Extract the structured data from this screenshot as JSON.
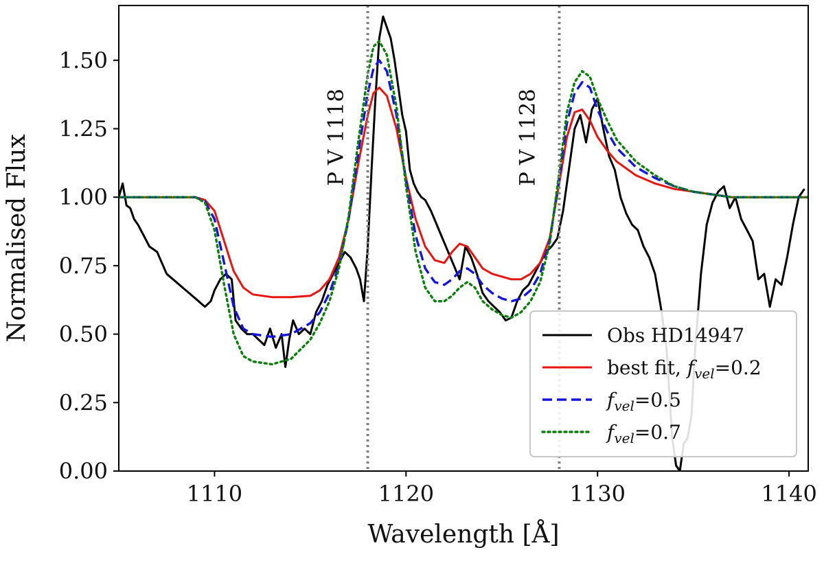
{
  "chart_data": {
    "type": "line",
    "title": "",
    "xlabel": "Wavelength [Å]",
    "ylabel": "Normalised Flux",
    "xlim": [
      1105,
      1141
    ],
    "ylim": [
      0.0,
      1.7
    ],
    "xticks": [
      1110,
      1120,
      1130,
      1140
    ],
    "yticks": [
      0.0,
      0.25,
      0.5,
      0.75,
      1.0,
      1.25,
      1.5
    ],
    "xtick_labels": [
      "1110",
      "1120",
      "1130",
      "1140"
    ],
    "ytick_labels": [
      "0.00",
      "0.25",
      "0.50",
      "0.75",
      "1.00",
      "1.25",
      "1.50"
    ],
    "grid": false,
    "legend_position": "bottom-right",
    "vertical_lines": [
      {
        "x": 1118,
        "label": "P V 1118",
        "color": "#808080",
        "style": "dotted"
      },
      {
        "x": 1128,
        "label": "P V 1128",
        "color": "#808080",
        "style": "dotted"
      }
    ],
    "series": [
      {
        "name": "Obs HD14947",
        "color": "#000000",
        "style": "solid",
        "x": [
          1105.0,
          1105.2,
          1105.4,
          1105.6,
          1105.8,
          1106.0,
          1106.3,
          1106.6,
          1107.0,
          1107.5,
          1108.0,
          1108.5,
          1109.0,
          1109.5,
          1109.8,
          1110.0,
          1110.3,
          1110.6,
          1110.9,
          1111.1,
          1111.4,
          1111.7,
          1112.0,
          1112.3,
          1112.6,
          1112.9,
          1113.2,
          1113.5,
          1113.7,
          1113.9,
          1114.1,
          1114.4,
          1114.7,
          1115.0,
          1115.3,
          1115.6,
          1115.9,
          1116.2,
          1116.5,
          1116.8,
          1117.1,
          1117.4,
          1117.6,
          1117.8,
          1118.0,
          1118.2,
          1118.4,
          1118.6,
          1118.8,
          1119.0,
          1119.2,
          1119.4,
          1119.6,
          1119.8,
          1120.0,
          1120.2,
          1120.4,
          1120.6,
          1120.8,
          1121.0,
          1121.3,
          1121.6,
          1121.9,
          1122.2,
          1122.5,
          1122.8,
          1123.1,
          1123.4,
          1123.7,
          1124.0,
          1124.3,
          1124.6,
          1124.9,
          1125.2,
          1125.5,
          1125.8,
          1126.1,
          1126.4,
          1126.7,
          1127.0,
          1127.3,
          1127.6,
          1127.9,
          1128.2,
          1128.5,
          1128.8,
          1129.1,
          1129.4,
          1129.7,
          1130.0,
          1130.3,
          1130.6,
          1130.9,
          1131.2,
          1131.5,
          1131.8,
          1132.1,
          1132.4,
          1132.7,
          1133.0,
          1133.3,
          1133.6,
          1133.9,
          1134.1,
          1134.3,
          1134.5,
          1134.7,
          1134.9,
          1135.1,
          1135.4,
          1135.7,
          1136.0,
          1136.3,
          1136.6,
          1136.9,
          1137.2,
          1137.5,
          1137.8,
          1138.1,
          1138.4,
          1138.7,
          1139.0,
          1139.3,
          1139.6,
          1139.9,
          1140.2,
          1140.5,
          1140.8
        ],
        "values": [
          1.0,
          1.05,
          0.97,
          0.96,
          0.92,
          0.9,
          0.86,
          0.82,
          0.8,
          0.72,
          0.69,
          0.66,
          0.63,
          0.6,
          0.62,
          0.66,
          0.7,
          0.72,
          0.7,
          0.55,
          0.52,
          0.5,
          0.5,
          0.48,
          0.46,
          0.52,
          0.45,
          0.5,
          0.38,
          0.48,
          0.55,
          0.5,
          0.52,
          0.5,
          0.58,
          0.62,
          0.68,
          0.72,
          0.76,
          0.8,
          0.78,
          0.74,
          0.7,
          0.62,
          0.82,
          1.1,
          1.36,
          1.58,
          1.66,
          1.62,
          1.58,
          1.5,
          1.4,
          1.3,
          1.24,
          1.1,
          1.05,
          1.02,
          1.0,
          0.99,
          0.95,
          0.9,
          0.85,
          0.8,
          0.75,
          0.7,
          0.82,
          0.78,
          0.72,
          0.65,
          0.62,
          0.6,
          0.58,
          0.55,
          0.56,
          0.62,
          0.66,
          0.68,
          0.72,
          0.76,
          0.8,
          0.82,
          0.85,
          0.95,
          1.1,
          1.25,
          1.3,
          1.2,
          1.32,
          1.36,
          1.25,
          1.15,
          1.1,
          1.0,
          0.94,
          0.9,
          0.88,
          0.82,
          0.78,
          0.72,
          0.6,
          0.45,
          0.12,
          0.02,
          0.0,
          0.1,
          0.12,
          0.2,
          0.45,
          0.72,
          0.9,
          0.98,
          1.02,
          1.04,
          0.96,
          1.0,
          0.92,
          0.88,
          0.84,
          0.7,
          0.72,
          0.6,
          0.7,
          0.68,
          0.78,
          0.9,
          1.0,
          1.03
        ]
      },
      {
        "name": "best fit, f_vel=0.2",
        "legend_main": "best fit, ",
        "legend_var": "f",
        "legend_sub": "vel",
        "legend_value": "=0.2",
        "color": "#e8140f",
        "style": "solid",
        "x": [
          1105.0,
          1106.0,
          1107.0,
          1108.0,
          1109.0,
          1109.5,
          1110.0,
          1110.5,
          1111.0,
          1111.5,
          1112.0,
          1113.0,
          1114.0,
          1115.0,
          1115.5,
          1116.0,
          1116.5,
          1117.0,
          1117.5,
          1118.0,
          1118.3,
          1118.6,
          1119.0,
          1119.5,
          1120.0,
          1120.5,
          1121.0,
          1121.5,
          1122.0,
          1122.4,
          1122.8,
          1123.2,
          1123.6,
          1124.0,
          1124.5,
          1125.0,
          1125.5,
          1126.0,
          1126.5,
          1127.0,
          1127.5,
          1128.0,
          1128.4,
          1128.8,
          1129.2,
          1129.6,
          1130.0,
          1130.5,
          1131.0,
          1132.0,
          1133.0,
          1134.0,
          1135.0,
          1136.0,
          1137.0,
          1138.0,
          1139.0,
          1140.0,
          1141.0
        ],
        "values": [
          1.0,
          1.0,
          1.0,
          1.0,
          1.0,
          0.99,
          0.95,
          0.84,
          0.73,
          0.67,
          0.645,
          0.635,
          0.635,
          0.64,
          0.66,
          0.7,
          0.78,
          0.92,
          1.12,
          1.3,
          1.38,
          1.4,
          1.37,
          1.25,
          1.07,
          0.92,
          0.82,
          0.77,
          0.76,
          0.8,
          0.83,
          0.82,
          0.78,
          0.74,
          0.72,
          0.71,
          0.7,
          0.7,
          0.72,
          0.76,
          0.85,
          1.05,
          1.22,
          1.31,
          1.32,
          1.28,
          1.22,
          1.17,
          1.13,
          1.08,
          1.05,
          1.03,
          1.02,
          1.01,
          1.0,
          1.0,
          1.0,
          1.0,
          1.0
        ]
      },
      {
        "name": "f_vel=0.5",
        "legend_main": "",
        "legend_var": "f",
        "legend_sub": "vel",
        "legend_value": "=0.5",
        "color": "#1515e0",
        "style": "dashed",
        "x": [
          1105.0,
          1106.0,
          1107.0,
          1108.0,
          1109.0,
          1109.5,
          1110.0,
          1110.5,
          1111.0,
          1111.5,
          1112.0,
          1113.0,
          1114.0,
          1115.0,
          1115.5,
          1116.0,
          1116.5,
          1117.0,
          1117.5,
          1118.0,
          1118.3,
          1118.6,
          1119.0,
          1119.5,
          1120.0,
          1120.5,
          1121.0,
          1121.5,
          1122.0,
          1122.4,
          1122.8,
          1123.2,
          1123.6,
          1124.0,
          1124.5,
          1125.0,
          1125.5,
          1126.0,
          1126.5,
          1127.0,
          1127.5,
          1128.0,
          1128.4,
          1128.8,
          1129.2,
          1129.6,
          1130.0,
          1130.5,
          1131.0,
          1132.0,
          1133.0,
          1134.0,
          1135.0,
          1136.0,
          1137.0,
          1138.0,
          1139.0,
          1140.0,
          1141.0
        ],
        "values": [
          1.0,
          1.0,
          1.0,
          1.0,
          1.0,
          0.985,
          0.92,
          0.76,
          0.6,
          0.52,
          0.5,
          0.49,
          0.5,
          0.54,
          0.58,
          0.65,
          0.75,
          0.92,
          1.16,
          1.38,
          1.47,
          1.5,
          1.46,
          1.3,
          1.06,
          0.86,
          0.74,
          0.69,
          0.68,
          0.7,
          0.73,
          0.74,
          0.72,
          0.68,
          0.65,
          0.63,
          0.62,
          0.63,
          0.66,
          0.72,
          0.84,
          1.07,
          1.27,
          1.38,
          1.42,
          1.4,
          1.32,
          1.24,
          1.18,
          1.11,
          1.07,
          1.04,
          1.02,
          1.01,
          1.0,
          1.0,
          1.0,
          1.0,
          1.0
        ]
      },
      {
        "name": "f_vel=0.7",
        "legend_main": "",
        "legend_var": "f",
        "legend_sub": "vel",
        "legend_value": "=0.7",
        "color": "#0a800a",
        "style": "dotted",
        "x": [
          1105.0,
          1106.0,
          1107.0,
          1108.0,
          1109.0,
          1109.5,
          1110.0,
          1110.5,
          1111.0,
          1111.5,
          1112.0,
          1113.0,
          1114.0,
          1115.0,
          1115.5,
          1116.0,
          1116.5,
          1117.0,
          1117.5,
          1118.0,
          1118.3,
          1118.6,
          1119.0,
          1119.5,
          1120.0,
          1120.5,
          1121.0,
          1121.5,
          1122.0,
          1122.4,
          1122.8,
          1123.2,
          1123.6,
          1124.0,
          1124.5,
          1125.0,
          1125.5,
          1126.0,
          1126.5,
          1127.0,
          1127.5,
          1128.0,
          1128.4,
          1128.8,
          1129.2,
          1129.6,
          1130.0,
          1130.5,
          1131.0,
          1132.0,
          1133.0,
          1134.0,
          1135.0,
          1136.0,
          1137.0,
          1138.0,
          1139.0,
          1140.0,
          1141.0
        ],
        "values": [
          1.0,
          1.0,
          1.0,
          1.0,
          1.0,
          0.98,
          0.88,
          0.68,
          0.5,
          0.42,
          0.4,
          0.39,
          0.41,
          0.48,
          0.54,
          0.62,
          0.74,
          0.93,
          1.2,
          1.45,
          1.55,
          1.57,
          1.52,
          1.33,
          1.04,
          0.8,
          0.67,
          0.62,
          0.62,
          0.64,
          0.67,
          0.69,
          0.67,
          0.62,
          0.59,
          0.57,
          0.56,
          0.58,
          0.62,
          0.69,
          0.83,
          1.09,
          1.31,
          1.42,
          1.46,
          1.44,
          1.36,
          1.28,
          1.21,
          1.13,
          1.08,
          1.04,
          1.02,
          1.01,
          1.0,
          1.0,
          1.0,
          1.0,
          1.0
        ]
      }
    ]
  }
}
